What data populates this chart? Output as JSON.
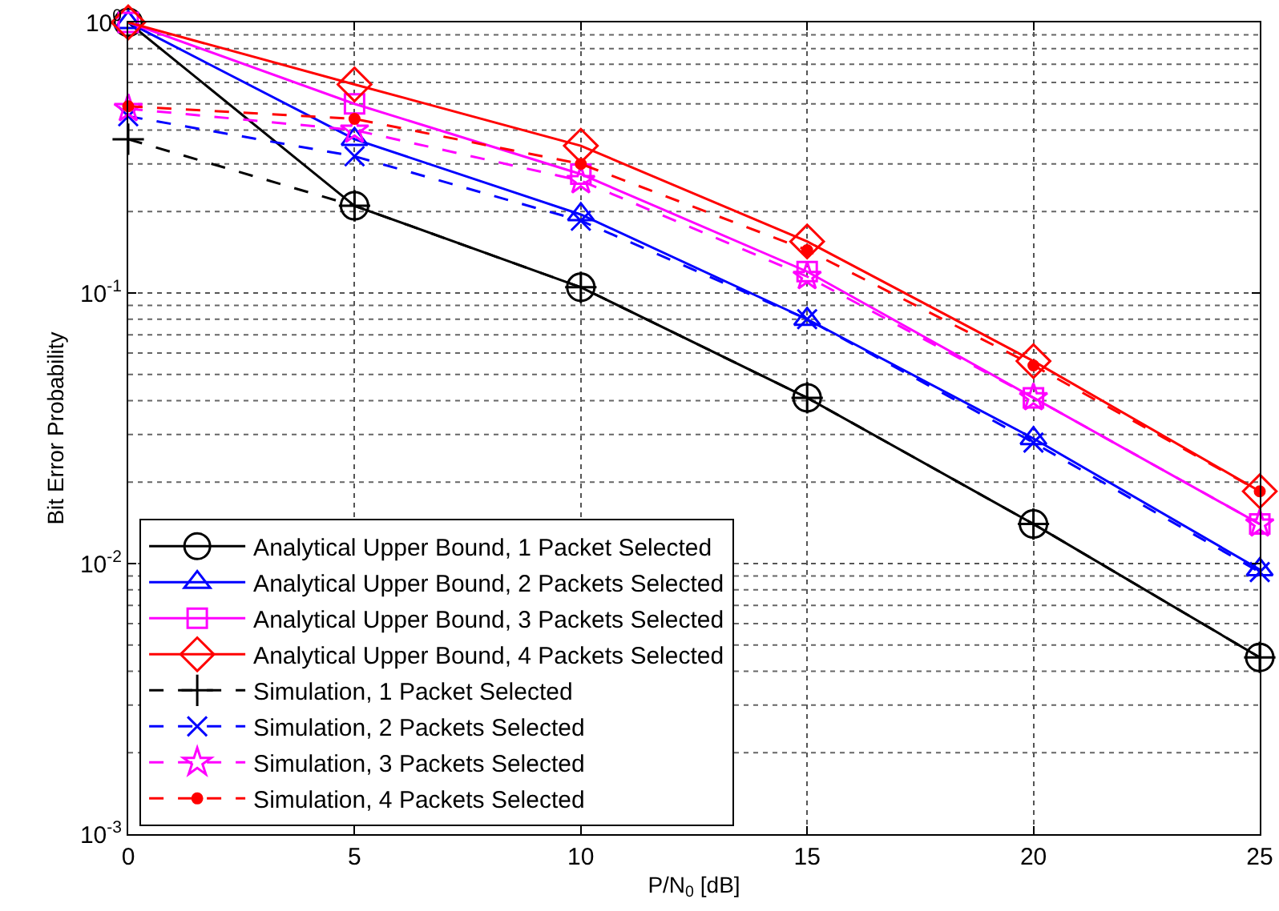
{
  "chart_data": {
    "type": "line",
    "xlabel": "P/N$_{0}$ [dB]",
    "ylabel": "Bit Error Probability",
    "x": [
      0,
      5,
      10,
      15,
      20,
      25
    ],
    "xlim": [
      0,
      25
    ],
    "xticks": [
      0,
      5,
      10,
      15,
      20,
      25
    ],
    "log": "y",
    "ylim": [
      0.001,
      1
    ],
    "yticks": [
      {
        "value": 0.001,
        "label": "10$^{-3}$"
      },
      {
        "value": 0.01,
        "label": "10$^{-2}$"
      },
      {
        "value": 0.1,
        "label": "10$^{-1}$"
      },
      {
        "value": 1,
        "label": "10$^{0}$"
      }
    ],
    "grid": true,
    "legend": "bottom left",
    "series": [
      {
        "name": "Analytical Upper Bound, 1 Packet Selected",
        "color": "#000000",
        "marker": "circle",
        "line_style": "solid",
        "values": [
          1,
          0.21,
          0.105,
          0.041,
          0.014,
          0.0045
        ]
      },
      {
        "name": "Analytical Upper Bound, 2 Packets Selected",
        "color": "#0000ff",
        "marker": "triangle",
        "line_style": "solid",
        "values": [
          1,
          0.37,
          0.195,
          0.08,
          0.029,
          0.0095
        ]
      },
      {
        "name": "Analytical Upper Bound, 3 Packets Selected",
        "color": "#ff00ff",
        "marker": "square",
        "line_style": "solid",
        "values": [
          1,
          0.5,
          0.275,
          0.12,
          0.041,
          0.014
        ]
      },
      {
        "name": "Analytical Upper Bound, 4 Packets Selected",
        "color": "#ff0000",
        "marker": "diamond",
        "line_style": "solid",
        "values": [
          1,
          0.59,
          0.35,
          0.155,
          0.056,
          0.0185
        ]
      },
      {
        "name": "Simulation, 1 Packet Selected",
        "color": "#000000",
        "marker": "cross",
        "line_style": "dashed",
        "values": [
          0.37,
          0.21,
          0.105,
          0.041,
          0.014,
          0.0045
        ]
      },
      {
        "name": "Simulation, 2 Packets Selected",
        "color": "#0000ff",
        "marker": "x",
        "line_style": "dashed",
        "values": [
          0.45,
          0.32,
          0.185,
          0.08,
          0.028,
          0.0093
        ]
      },
      {
        "name": "Simulation, 3 Packets Selected",
        "color": "#ff00ff",
        "marker": "star",
        "line_style": "dashed",
        "values": [
          0.48,
          0.4,
          0.26,
          0.115,
          0.041,
          0.014
        ]
      },
      {
        "name": "Simulation, 4 Packets Selected",
        "color": "#ff0000",
        "marker": "circle-small",
        "line_style": "dashed",
        "values": [
          0.49,
          0.44,
          0.3,
          0.144,
          0.054,
          0.0185
        ]
      }
    ]
  }
}
